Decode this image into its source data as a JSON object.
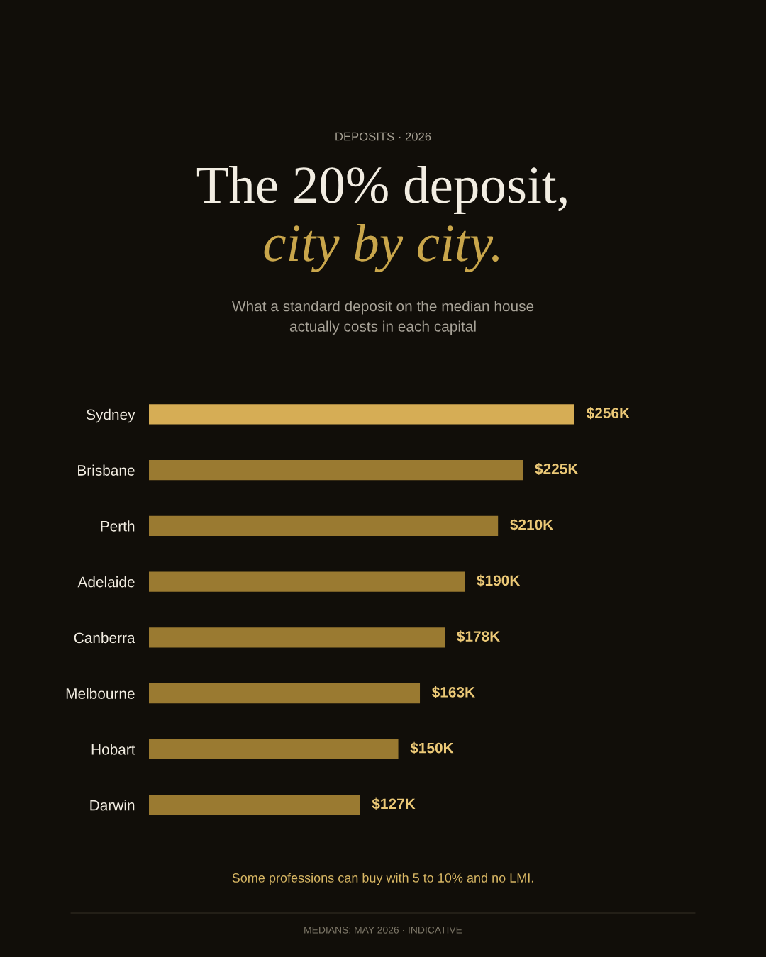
{
  "chart_data": {
    "type": "bar",
    "orientation": "horizontal",
    "title": "The 20% deposit,",
    "subtitle": "city by city.",
    "annotations": [
      "DEPOSITS · 2026",
      "What a standard deposit on the median house\nactually costs in each capital",
      "Some professions can buy with 5 to 10% and no LMI.",
      "MEDIANS: MAY 2026 · INDICATIVE"
    ],
    "categories": [
      "Sydney",
      "Brisbane",
      "Perth",
      "Adelaide",
      "Canberra",
      "Melbourne",
      "Hobart",
      "Darwin"
    ],
    "values": [
      256,
      225,
      210,
      190,
      178,
      163,
      150,
      127
    ],
    "value_labels": [
      "$256K",
      "$225K",
      "$210K",
      "$190K",
      "$178K",
      "$163K",
      "$150K",
      "$127K"
    ],
    "colors": [
      "#d6ad55",
      "#9a7a31",
      "#9a7a31",
      "#9a7a31",
      "#9a7a31",
      "#9a7a31",
      "#9a7a31",
      "#9a7a31"
    ],
    "tick_labels": "y",
    "grid": false,
    "legend": false
  }
}
